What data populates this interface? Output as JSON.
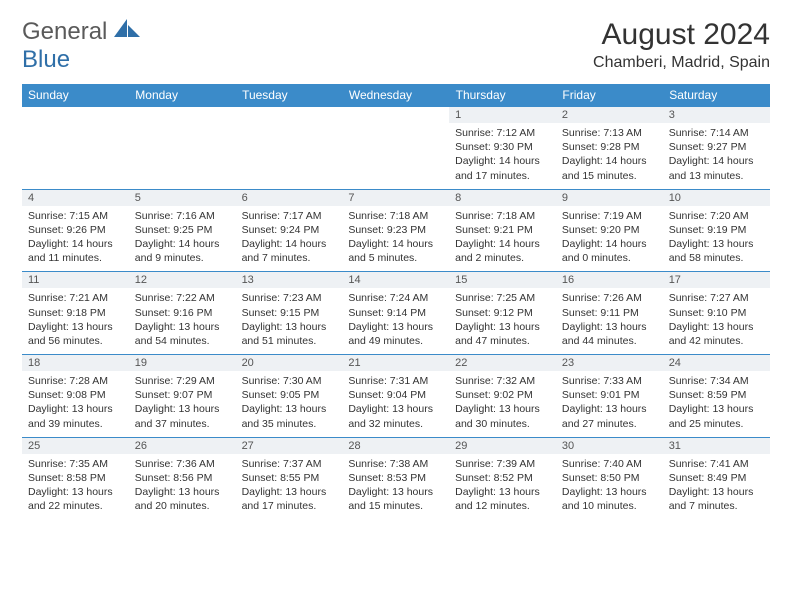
{
  "logo": {
    "g": "General",
    "b": "Blue"
  },
  "title": "August 2024",
  "location": "Chamberi, Madrid, Spain",
  "colors": {
    "header_bg": "#3b8bc9",
    "header_text": "#ffffff",
    "daynum_bg": "#eef1f4",
    "border": "#3b8bc9",
    "logo_blue": "#2f6fa8"
  },
  "dayNames": [
    "Sunday",
    "Monday",
    "Tuesday",
    "Wednesday",
    "Thursday",
    "Friday",
    "Saturday"
  ],
  "weeks": [
    [
      null,
      null,
      null,
      null,
      {
        "n": "1",
        "r": "7:12 AM",
        "s": "9:30 PM",
        "d": "14 hours and 17 minutes."
      },
      {
        "n": "2",
        "r": "7:13 AM",
        "s": "9:28 PM",
        "d": "14 hours and 15 minutes."
      },
      {
        "n": "3",
        "r": "7:14 AM",
        "s": "9:27 PM",
        "d": "14 hours and 13 minutes."
      }
    ],
    [
      {
        "n": "4",
        "r": "7:15 AM",
        "s": "9:26 PM",
        "d": "14 hours and 11 minutes."
      },
      {
        "n": "5",
        "r": "7:16 AM",
        "s": "9:25 PM",
        "d": "14 hours and 9 minutes."
      },
      {
        "n": "6",
        "r": "7:17 AM",
        "s": "9:24 PM",
        "d": "14 hours and 7 minutes."
      },
      {
        "n": "7",
        "r": "7:18 AM",
        "s": "9:23 PM",
        "d": "14 hours and 5 minutes."
      },
      {
        "n": "8",
        "r": "7:18 AM",
        "s": "9:21 PM",
        "d": "14 hours and 2 minutes."
      },
      {
        "n": "9",
        "r": "7:19 AM",
        "s": "9:20 PM",
        "d": "14 hours and 0 minutes."
      },
      {
        "n": "10",
        "r": "7:20 AM",
        "s": "9:19 PM",
        "d": "13 hours and 58 minutes."
      }
    ],
    [
      {
        "n": "11",
        "r": "7:21 AM",
        "s": "9:18 PM",
        "d": "13 hours and 56 minutes."
      },
      {
        "n": "12",
        "r": "7:22 AM",
        "s": "9:16 PM",
        "d": "13 hours and 54 minutes."
      },
      {
        "n": "13",
        "r": "7:23 AM",
        "s": "9:15 PM",
        "d": "13 hours and 51 minutes."
      },
      {
        "n": "14",
        "r": "7:24 AM",
        "s": "9:14 PM",
        "d": "13 hours and 49 minutes."
      },
      {
        "n": "15",
        "r": "7:25 AM",
        "s": "9:12 PM",
        "d": "13 hours and 47 minutes."
      },
      {
        "n": "16",
        "r": "7:26 AM",
        "s": "9:11 PM",
        "d": "13 hours and 44 minutes."
      },
      {
        "n": "17",
        "r": "7:27 AM",
        "s": "9:10 PM",
        "d": "13 hours and 42 minutes."
      }
    ],
    [
      {
        "n": "18",
        "r": "7:28 AM",
        "s": "9:08 PM",
        "d": "13 hours and 39 minutes."
      },
      {
        "n": "19",
        "r": "7:29 AM",
        "s": "9:07 PM",
        "d": "13 hours and 37 minutes."
      },
      {
        "n": "20",
        "r": "7:30 AM",
        "s": "9:05 PM",
        "d": "13 hours and 35 minutes."
      },
      {
        "n": "21",
        "r": "7:31 AM",
        "s": "9:04 PM",
        "d": "13 hours and 32 minutes."
      },
      {
        "n": "22",
        "r": "7:32 AM",
        "s": "9:02 PM",
        "d": "13 hours and 30 minutes."
      },
      {
        "n": "23",
        "r": "7:33 AM",
        "s": "9:01 PM",
        "d": "13 hours and 27 minutes."
      },
      {
        "n": "24",
        "r": "7:34 AM",
        "s": "8:59 PM",
        "d": "13 hours and 25 minutes."
      }
    ],
    [
      {
        "n": "25",
        "r": "7:35 AM",
        "s": "8:58 PM",
        "d": "13 hours and 22 minutes."
      },
      {
        "n": "26",
        "r": "7:36 AM",
        "s": "8:56 PM",
        "d": "13 hours and 20 minutes."
      },
      {
        "n": "27",
        "r": "7:37 AM",
        "s": "8:55 PM",
        "d": "13 hours and 17 minutes."
      },
      {
        "n": "28",
        "r": "7:38 AM",
        "s": "8:53 PM",
        "d": "13 hours and 15 minutes."
      },
      {
        "n": "29",
        "r": "7:39 AM",
        "s": "8:52 PM",
        "d": "13 hours and 12 minutes."
      },
      {
        "n": "30",
        "r": "7:40 AM",
        "s": "8:50 PM",
        "d": "13 hours and 10 minutes."
      },
      {
        "n": "31",
        "r": "7:41 AM",
        "s": "8:49 PM",
        "d": "13 hours and 7 minutes."
      }
    ]
  ],
  "labels": {
    "sunrise": "Sunrise: ",
    "sunset": "Sunset: ",
    "daylight": "Daylight: "
  }
}
